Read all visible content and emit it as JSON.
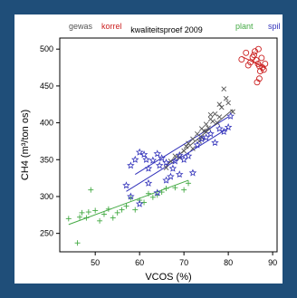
{
  "chart_data": {
    "type": "scatter",
    "title": "kwaliteitsproef 2009",
    "xlabel": "VCOS (%)",
    "ylabel": "CH4 (m³/ton os)",
    "xlim": [
      42,
      91
    ],
    "ylim": [
      225,
      515
    ],
    "xticks": [
      50,
      60,
      70,
      80,
      90
    ],
    "yticks": [
      250,
      300,
      350,
      400,
      450,
      500
    ],
    "grid": false,
    "legend": "top, as colored text labels",
    "series": [
      {
        "name": "gewas",
        "marker": "x",
        "color": "#555555",
        "points": [
          [
            66,
            339
          ],
          [
            67,
            348
          ],
          [
            68,
            355
          ],
          [
            69,
            353
          ],
          [
            70,
            362
          ],
          [
            70.5,
            368
          ],
          [
            71,
            372
          ],
          [
            72,
            378
          ],
          [
            73,
            385
          ],
          [
            73.5,
            375
          ],
          [
            74,
            392
          ],
          [
            74.5,
            389
          ],
          [
            75,
            398
          ],
          [
            75.5,
            393
          ],
          [
            76,
            405
          ],
          [
            76.5,
            402
          ],
          [
            77,
            412
          ],
          [
            77.5,
            400
          ],
          [
            78,
            425
          ],
          [
            78.5,
            421
          ],
          [
            79,
            446
          ],
          [
            79.5,
            433
          ],
          [
            80,
            427
          ],
          [
            81,
            415
          ],
          [
            76,
            411
          ],
          [
            74,
            380
          ],
          [
            78,
            408
          ],
          [
            72,
            365
          ],
          [
            75,
            388
          ]
        ],
        "fit": [
          [
            66,
            342
          ],
          [
            81,
            418
          ]
        ]
      },
      {
        "name": "korrel",
        "marker": "o",
        "color": "#cc2222",
        "points": [
          [
            83,
            486
          ],
          [
            84,
            495
          ],
          [
            84.5,
            478
          ],
          [
            85,
            482
          ],
          [
            85.5,
            489
          ],
          [
            86,
            497
          ],
          [
            86.3,
            485
          ],
          [
            86.7,
            480
          ],
          [
            87,
            477
          ],
          [
            87.2,
            470
          ],
          [
            87.5,
            488
          ],
          [
            87.7,
            475
          ],
          [
            88,
            472
          ],
          [
            88.3,
            480
          ],
          [
            86.5,
            455
          ],
          [
            87,
            460
          ],
          [
            86.8,
            500
          ],
          [
            85.8,
            492
          ]
        ],
        "fit": [
          [
            83,
            490
          ],
          [
            88.5,
            474
          ]
        ]
      },
      {
        "name": "plant",
        "marker": "+",
        "color": "#44aa44",
        "points": [
          [
            44,
            270
          ],
          [
            46,
            237
          ],
          [
            46.5,
            272
          ],
          [
            47,
            278
          ],
          [
            48,
            271
          ],
          [
            48.5,
            279
          ],
          [
            49,
            309
          ],
          [
            50,
            281
          ],
          [
            51,
            267
          ],
          [
            52,
            276
          ],
          [
            53,
            283
          ],
          [
            54,
            271
          ],
          [
            55,
            278
          ],
          [
            56,
            282
          ],
          [
            57,
            287
          ],
          [
            58,
            298
          ],
          [
            59,
            282
          ],
          [
            60,
            295
          ],
          [
            61,
            292
          ],
          [
            63,
            299
          ],
          [
            64,
            302
          ],
          [
            65,
            306
          ],
          [
            66,
            311
          ],
          [
            68,
            312
          ],
          [
            70,
            309
          ],
          [
            62,
            304
          ],
          [
            71,
            318
          ]
        ],
        "fit": [
          [
            44,
            262
          ],
          [
            71,
            322
          ]
        ]
      },
      {
        "name": "spil",
        "marker": "star",
        "color": "#3333bb",
        "points": [
          [
            57,
            315
          ],
          [
            58,
            342
          ],
          [
            59,
            350
          ],
          [
            60,
            360
          ],
          [
            61,
            357
          ],
          [
            61.5,
            350
          ],
          [
            62,
            338
          ],
          [
            63,
            349
          ],
          [
            64,
            358
          ],
          [
            64.5,
            342
          ],
          [
            65,
            352
          ],
          [
            66,
            346
          ],
          [
            67,
            327
          ],
          [
            67.5,
            338
          ],
          [
            68,
            348
          ],
          [
            69,
            356
          ],
          [
            70,
            350
          ],
          [
            71,
            355
          ],
          [
            72,
            332
          ],
          [
            73,
            370
          ],
          [
            74,
            378
          ],
          [
            75,
            380
          ],
          [
            76,
            385
          ],
          [
            77,
            373
          ],
          [
            78,
            392
          ],
          [
            79,
            388
          ],
          [
            80,
            394
          ],
          [
            80.5,
            409
          ],
          [
            58,
            300
          ],
          [
            60,
            290
          ],
          [
            62,
            318
          ],
          [
            64,
            305
          ],
          [
            66,
            322
          ],
          [
            69,
            330
          ]
        ],
        "fit": [
          [
            57,
            307
          ],
          [
            80,
            393
          ]
        ],
        "fit2": [
          [
            59,
            330
          ],
          [
            80,
            408
          ]
        ]
      }
    ]
  }
}
